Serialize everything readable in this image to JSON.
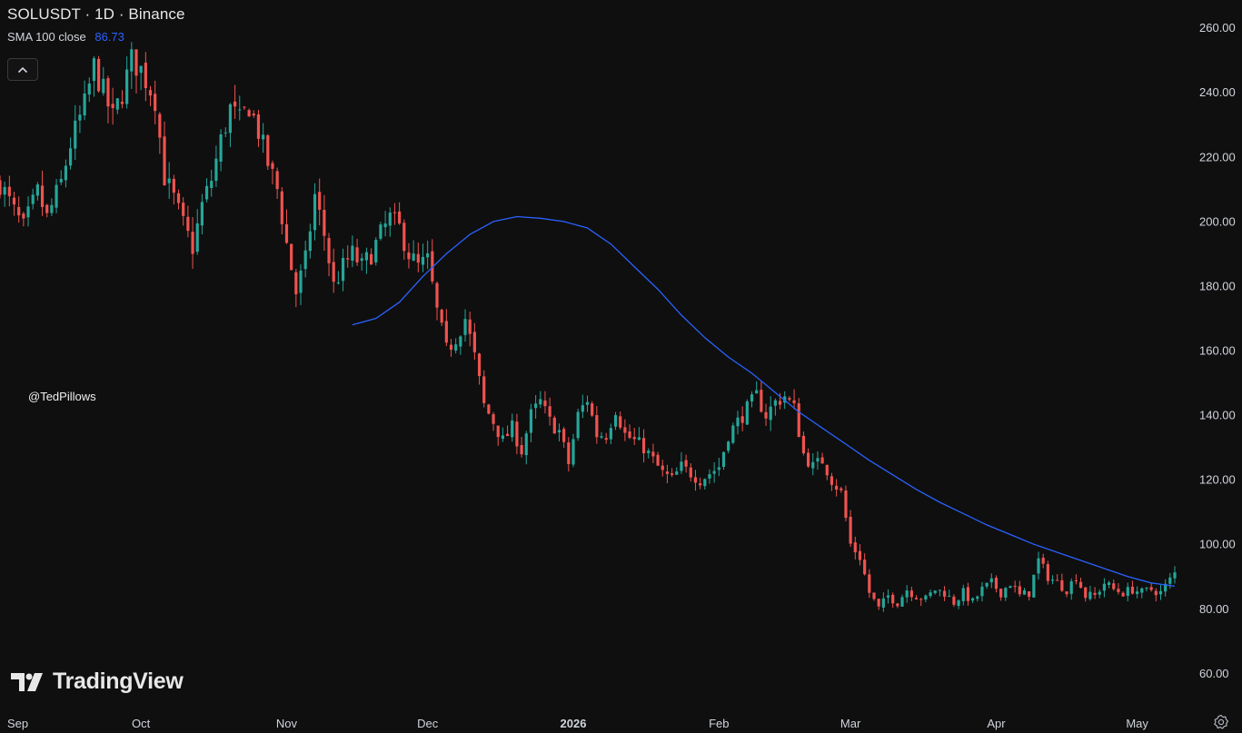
{
  "legend": {
    "symbol_title": "SOLUSDT · 1D · Binance",
    "indicator_label": "SMA 100 close",
    "indicator_value": "86.73"
  },
  "watermark_user": "@TedPillows",
  "logo_text": "TradingView",
  "colors": {
    "background": "#0f0f0f",
    "up": "#26a69a",
    "down": "#ef5350",
    "sma": "#2962ff",
    "text": "#d1d4dc"
  },
  "icons": {
    "collapse": "chevron-up-icon",
    "logo": "tradingview-logo-icon",
    "settings": "settings-icon"
  },
  "chart_data": {
    "type": "candlestick",
    "title": "SOLUSDT · 1D · Binance",
    "y_axis": {
      "side": "right",
      "range": [
        57,
        263
      ],
      "ticks": [
        "260.00",
        "240.00",
        "220.00",
        "200.00",
        "180.00",
        "160.00",
        "140.00",
        "120.00",
        "100.00",
        "80.00",
        "60.00"
      ]
    },
    "x_axis": {
      "range_days": [
        0,
        250
      ],
      "tick_labels": [
        {
          "label": "Sep",
          "day": 0,
          "bold": false
        },
        {
          "label": "Oct",
          "day": 30,
          "bold": false
        },
        {
          "label": "Nov",
          "day": 61,
          "bold": false
        },
        {
          "label": "Dec",
          "day": 91,
          "bold": false
        },
        {
          "label": "2026",
          "day": 122,
          "bold": true
        },
        {
          "label": "Feb",
          "day": 153,
          "bold": false
        },
        {
          "label": "Mar",
          "day": 181,
          "bold": false
        },
        {
          "label": "Apr",
          "day": 212,
          "bold": false
        },
        {
          "label": "May",
          "day": 242,
          "bold": false
        }
      ]
    },
    "close_path": [
      [
        0,
        212
      ],
      [
        3,
        203
      ],
      [
        5,
        198
      ],
      [
        8,
        209
      ],
      [
        10,
        201
      ],
      [
        13,
        212
      ],
      [
        15,
        224
      ],
      [
        18,
        236
      ],
      [
        20,
        248
      ],
      [
        22,
        240
      ],
      [
        24,
        232
      ],
      [
        26,
        240
      ],
      [
        28,
        250
      ],
      [
        30,
        247
      ],
      [
        33,
        238
      ],
      [
        35,
        214
      ],
      [
        37,
        207
      ],
      [
        39,
        199
      ],
      [
        41,
        192
      ],
      [
        43,
        205
      ],
      [
        45,
        213
      ],
      [
        47,
        225
      ],
      [
        49,
        235
      ],
      [
        51,
        231
      ],
      [
        53,
        236
      ],
      [
        55,
        228
      ],
      [
        57,
        218
      ],
      [
        59,
        210
      ],
      [
        61,
        193
      ],
      [
        63,
        178
      ],
      [
        65,
        188
      ],
      [
        67,
        208
      ],
      [
        69,
        196
      ],
      [
        71,
        180
      ],
      [
        73,
        186
      ],
      [
        75,
        190
      ],
      [
        77,
        186
      ],
      [
        79,
        190
      ],
      [
        81,
        196
      ],
      [
        83,
        201
      ],
      [
        85,
        198
      ],
      [
        87,
        190
      ],
      [
        89,
        186
      ],
      [
        91,
        188
      ],
      [
        93,
        172
      ],
      [
        95,
        160
      ],
      [
        97,
        164
      ],
      [
        99,
        170
      ],
      [
        101,
        158
      ],
      [
        103,
        143
      ],
      [
        105,
        138
      ],
      [
        107,
        132
      ],
      [
        109,
        136
      ],
      [
        111,
        129
      ],
      [
        113,
        140
      ],
      [
        115,
        144
      ],
      [
        117,
        138
      ],
      [
        119,
        135
      ],
      [
        121,
        125
      ],
      [
        123,
        140
      ],
      [
        125,
        145
      ],
      [
        127,
        134
      ],
      [
        129,
        134
      ],
      [
        131,
        142
      ],
      [
        133,
        134
      ],
      [
        135,
        132
      ],
      [
        137,
        130
      ],
      [
        139,
        126
      ],
      [
        141,
        122
      ],
      [
        143,
        120
      ],
      [
        145,
        124
      ],
      [
        147,
        122
      ],
      [
        149,
        120
      ],
      [
        151,
        122
      ],
      [
        153,
        124
      ],
      [
        155,
        134
      ],
      [
        157,
        138
      ],
      [
        159,
        142
      ],
      [
        161,
        146
      ],
      [
        163,
        140
      ],
      [
        165,
        144
      ],
      [
        167,
        146
      ],
      [
        169,
        142
      ],
      [
        171,
        128
      ],
      [
        173,
        124
      ],
      [
        175,
        126
      ],
      [
        177,
        120
      ],
      [
        179,
        116
      ],
      [
        181,
        100
      ],
      [
        183,
        96
      ],
      [
        185,
        85
      ],
      [
        187,
        80
      ],
      [
        189,
        84
      ],
      [
        191,
        82
      ],
      [
        193,
        86
      ],
      [
        195,
        84
      ],
      [
        197,
        83
      ],
      [
        199,
        86
      ],
      [
        201,
        85
      ],
      [
        203,
        82
      ],
      [
        205,
        85
      ],
      [
        207,
        82
      ],
      [
        209,
        86
      ],
      [
        211,
        88
      ],
      [
        213,
        85
      ],
      [
        215,
        88
      ],
      [
        217,
        84
      ],
      [
        219,
        85
      ],
      [
        221,
        95
      ],
      [
        223,
        90
      ],
      [
        225,
        88
      ],
      [
        227,
        86
      ],
      [
        229,
        90
      ],
      [
        231,
        84
      ],
      [
        233,
        84
      ],
      [
        235,
        88
      ],
      [
        237,
        86
      ],
      [
        239,
        85
      ],
      [
        241,
        86
      ],
      [
        243,
        85
      ],
      [
        245,
        86
      ],
      [
        247,
        85
      ],
      [
        249,
        89
      ],
      [
        250,
        91
      ]
    ],
    "sma100": [
      [
        0,
        168
      ],
      [
        5,
        170
      ],
      [
        10,
        175
      ],
      [
        15,
        183
      ],
      [
        20,
        190
      ],
      [
        25,
        196
      ],
      [
        30,
        200
      ],
      [
        35,
        201.5
      ],
      [
        40,
        201
      ],
      [
        45,
        200
      ],
      [
        50,
        198
      ],
      [
        55,
        193
      ],
      [
        60,
        186
      ],
      [
        65,
        179
      ],
      [
        70,
        171
      ],
      [
        75,
        164
      ],
      [
        80,
        158
      ],
      [
        85,
        153
      ],
      [
        90,
        147
      ],
      [
        95,
        141
      ],
      [
        100,
        136
      ],
      [
        105,
        131
      ],
      [
        110,
        126
      ],
      [
        115,
        121.5
      ],
      [
        120,
        117
      ],
      [
        125,
        113
      ],
      [
        130,
        109.5
      ],
      [
        135,
        106
      ],
      [
        140,
        103
      ],
      [
        145,
        100
      ],
      [
        150,
        97.5
      ],
      [
        155,
        95
      ],
      [
        160,
        92.5
      ],
      [
        165,
        90
      ],
      [
        170,
        88
      ],
      [
        175,
        87
      ]
    ],
    "sma100_day_offset": 75,
    "last_sma_value": 86.73
  }
}
